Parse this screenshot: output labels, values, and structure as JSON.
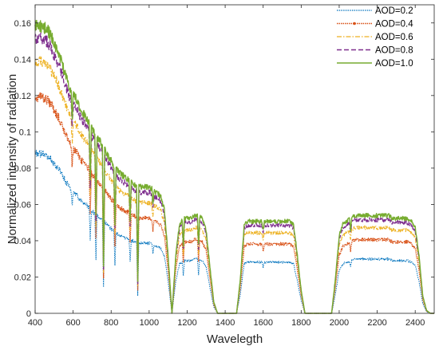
{
  "chart_data": {
    "type": "line",
    "xlabel": "Wavelegth",
    "ylabel": "Normalized intensity of radiation",
    "xlim": [
      400,
      2500
    ],
    "ylim": [
      0,
      0.17
    ],
    "xticks": [
      400,
      600,
      800,
      1000,
      1200,
      1400,
      1600,
      1800,
      2000,
      2200,
      2400
    ],
    "yticks": [
      0,
      0.02,
      0.04,
      0.06,
      0.08,
      0.1,
      0.12,
      0.14,
      0.16
    ],
    "ytick_labels": [
      "0",
      "0.02",
      "0.04",
      "0.06",
      "0.08",
      "0.1",
      "0.12",
      "0.14",
      "0.16"
    ],
    "grid": false,
    "legend_position": "top-right",
    "envelope": {
      "x": [
        400,
        420,
        440,
        460,
        480,
        500,
        520,
        540,
        560,
        580,
        600,
        620,
        640,
        660,
        680,
        700,
        720,
        740,
        760,
        780,
        800,
        820,
        840,
        860,
        880,
        900,
        920,
        940,
        960,
        980,
        1000,
        1020,
        1040,
        1060,
        1080,
        1100,
        1120,
        1140,
        1160,
        1180,
        1200,
        1220,
        1240,
        1260,
        1280,
        1300,
        1320,
        1340,
        1360,
        1380,
        1400,
        1420,
        1440,
        1460,
        1480,
        1500,
        1520,
        1540,
        1560,
        1580,
        1600,
        1620,
        1640,
        1660,
        1680,
        1700,
        1720,
        1740,
        1760,
        1780,
        1800,
        1820,
        1840,
        1860,
        1880,
        1900,
        1920,
        1940,
        1960,
        1980,
        2000,
        2020,
        2040,
        2060,
        2080,
        2100,
        2120,
        2140,
        2160,
        2180,
        2200,
        2220,
        2240,
        2260,
        2280,
        2300,
        2320,
        2340,
        2360,
        2380,
        2400,
        2420,
        2440,
        2460,
        2480,
        2500
      ],
      "relative": [
        1.0,
        1.0,
        1.0,
        0.99,
        0.97,
        0.94,
        0.91,
        0.87,
        0.83,
        0.79,
        0.76,
        0.74,
        0.71,
        0.69,
        0.67,
        0.64,
        0.62,
        0.6,
        0.58,
        0.55,
        0.53,
        0.51,
        0.49,
        0.48,
        0.47,
        0.46,
        0.45,
        0.44,
        0.44,
        0.44,
        0.44,
        0.43,
        0.42,
        0.41,
        0.36,
        0.2,
        0.0,
        0.2,
        0.31,
        0.33,
        0.33,
        0.33,
        0.34,
        0.34,
        0.33,
        0.29,
        0.16,
        0.04,
        0.0,
        0.0,
        0.0,
        0.0,
        0.0,
        0.0,
        0.12,
        0.31,
        0.32,
        0.32,
        0.32,
        0.32,
        0.32,
        0.32,
        0.32,
        0.32,
        0.32,
        0.32,
        0.32,
        0.32,
        0.31,
        0.2,
        0.08,
        0.0,
        0.0,
        0.0,
        0.0,
        0.0,
        0.0,
        0.0,
        0.0,
        0.12,
        0.27,
        0.31,
        0.32,
        0.33,
        0.34,
        0.34,
        0.34,
        0.34,
        0.34,
        0.34,
        0.34,
        0.34,
        0.34,
        0.34,
        0.33,
        0.33,
        0.33,
        0.33,
        0.33,
        0.32,
        0.3,
        0.2,
        0.06,
        0.01,
        0.0,
        0.0
      ]
    },
    "absorption_bands": [
      {
        "center": 595,
        "depth": 0.12
      },
      {
        "center": 690,
        "depth": 0.3
      },
      {
        "center": 720,
        "depth": 0.45
      },
      {
        "center": 760,
        "depth": 0.72
      },
      {
        "center": 820,
        "depth": 0.4
      },
      {
        "center": 900,
        "depth": 0.3
      },
      {
        "center": 940,
        "depth": 0.75
      },
      {
        "center": 1020,
        "depth": 0.12
      },
      {
        "center": 1180,
        "depth": 0.3
      },
      {
        "center": 1260,
        "depth": 0.3
      },
      {
        "center": 1600,
        "depth": 0.1
      },
      {
        "center": 2060,
        "depth": 0.12
      }
    ],
    "series": [
      {
        "name": "AOD=0.2",
        "peak": 0.09,
        "color": "#0072BD",
        "dash": "1.5,1.2",
        "width": 1.0
      },
      {
        "name": "AOD=0.4",
        "peak": 0.122,
        "color": "#D95319",
        "dash": "1.5,1",
        "width": 1.3,
        "marker": "dot"
      },
      {
        "name": "AOD=0.6",
        "peak": 0.142,
        "color": "#EDB120",
        "dash": "6,2,1.5,2",
        "width": 1.1
      },
      {
        "name": "AOD=0.8",
        "peak": 0.155,
        "color": "#7E2F8E",
        "dash": "6,3",
        "width": 1.3
      },
      {
        "name": "AOD=1.0",
        "peak": 0.162,
        "color": "#77AC30",
        "dash": "",
        "width": 1.4
      }
    ]
  }
}
